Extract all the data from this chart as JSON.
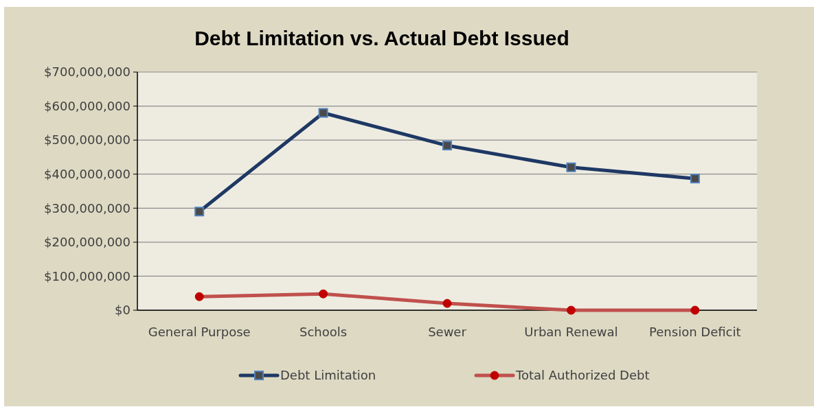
{
  "chart_data": {
    "type": "line",
    "title": "Debt Limitation vs. Actual Debt Issued",
    "categories": [
      "General Purpose",
      "Schools",
      "Sewer",
      "Urban Renewal",
      "Pension Deficit"
    ],
    "series": [
      {
        "name": "Debt Limitation",
        "color": "#1f3864",
        "marker": "square",
        "values": [
          290000000,
          580000000,
          484000000,
          420000000,
          387000000
        ]
      },
      {
        "name": "Total Authorized Debt",
        "color": "#c0504d",
        "marker": "circle",
        "values": [
          40000000,
          48000000,
          20000000,
          0,
          0
        ]
      }
    ],
    "ylim": [
      0,
      700000000
    ],
    "yticks": [
      {
        "value": 0,
        "label": "$0"
      },
      {
        "value": 100000000,
        "label": "$100,000,000"
      },
      {
        "value": 200000000,
        "label": "$200,000,000"
      },
      {
        "value": 300000000,
        "label": "$300,000,000"
      },
      {
        "value": 400000000,
        "label": "$400,000,000"
      },
      {
        "value": 500000000,
        "label": "$500,000,000"
      },
      {
        "value": 600000000,
        "label": "$600,000,000"
      },
      {
        "value": 700000000,
        "label": "$700,000,000"
      }
    ],
    "grid": "y",
    "legend": "bottom",
    "line_style": "solid"
  }
}
